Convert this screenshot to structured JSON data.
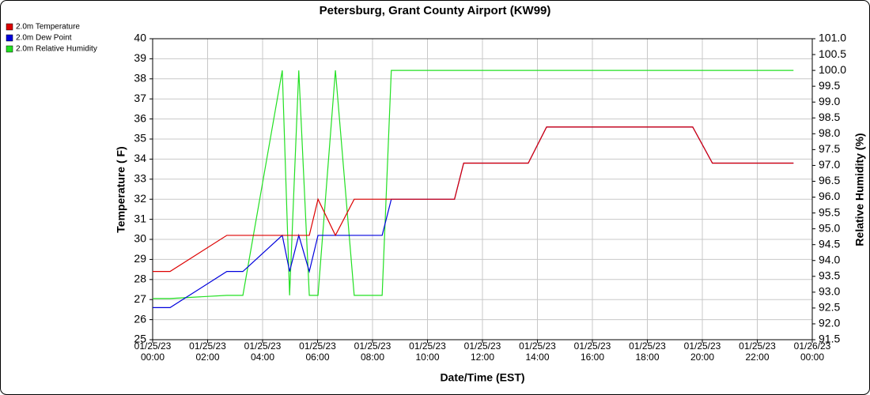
{
  "chart_data": {
    "type": "line",
    "title": "Petersburg, Grant County Airport (KW99)",
    "x_label": "Date/Time (EST)",
    "y_label": "Temperature ( F)",
    "y2_label": "Relative Humidity (%)",
    "x": [
      "01/25/23 00:00",
      "01/25/23 00:38",
      "01/25/23 02:42",
      "01/25/23 03:17",
      "01/25/23 04:43",
      "01/25/23 04:59",
      "01/25/23 05:19",
      "01/25/23 05:42",
      "01/25/23 06:01",
      "01/25/23 06:39",
      "01/25/23 07:20",
      "01/25/23 08:21",
      "01/25/23 08:41",
      "01/25/23 10:59",
      "01/25/23 11:19",
      "01/25/23 13:40",
      "01/25/23 14:20",
      "01/25/23 19:39",
      "01/25/23 20:22",
      "01/25/23 23:19"
    ],
    "series": [
      {
        "name": "2.0m Relative Humidity",
        "color": "#22e022",
        "axis": "y2",
        "values": [
          92.8,
          92.8,
          92.9,
          92.9,
          100,
          92.9,
          100,
          92.9,
          92.9,
          100,
          92.9,
          92.9,
          100,
          100,
          100,
          100,
          100,
          100,
          100,
          100
        ]
      },
      {
        "name": "2.0m Dew Point",
        "color": "#0000dd",
        "values": [
          26.6,
          26.6,
          28.4,
          28.4,
          30.2,
          28.4,
          30.2,
          28.4,
          30.2,
          30.2,
          30.2,
          30.2,
          32.0,
          32.0,
          33.8,
          33.8,
          35.6,
          35.6,
          33.8,
          33.8
        ]
      },
      {
        "name": "2.0m Temperature",
        "color": "#dd0000",
        "values": [
          28.4,
          28.4,
          30.2,
          30.2,
          30.2,
          30.2,
          30.2,
          30.2,
          32.0,
          30.2,
          32.0,
          32.0,
          32.0,
          32.0,
          33.8,
          33.8,
          35.6,
          35.6,
          33.8,
          33.8
        ]
      }
    ],
    "legend_order": [
      2,
      1,
      0
    ],
    "xlim": [
      "01/25/23 00:00",
      "01/26/23 00:00"
    ],
    "xticks": [
      "01/25/23 00:00",
      "01/25/23 02:00",
      "01/25/23 04:00",
      "01/25/23 06:00",
      "01/25/23 08:00",
      "01/25/23 10:00",
      "01/25/23 12:00",
      "01/25/23 14:00",
      "01/25/23 16:00",
      "01/25/23 18:00",
      "01/25/23 20:00",
      "01/25/23 22:00",
      "01/26/23 00:00"
    ],
    "ylim": [
      25,
      40
    ],
    "yticks": [
      25,
      26,
      27,
      28,
      29,
      30,
      31,
      32,
      33,
      34,
      35,
      36,
      37,
      38,
      39,
      40
    ],
    "y2lim": [
      91.5,
      101
    ],
    "y2ticks": [
      91.5,
      {
        "value": 92,
        "label": "92.0"
      },
      92.5,
      {
        "value": 93,
        "label": "93.0"
      },
      93.5,
      {
        "value": 94,
        "label": "94.0"
      },
      94.5,
      {
        "value": 95,
        "label": "95.0"
      },
      95.5,
      {
        "value": 96,
        "label": "96.0"
      },
      96.5,
      {
        "value": 97,
        "label": "97.0"
      },
      97.5,
      {
        "value": 98,
        "label": "98.0"
      },
      98.5,
      {
        "value": 99,
        "label": "99.0"
      },
      99.5,
      {
        "value": 100,
        "label": "100.0"
      },
      100.5,
      {
        "value": 101,
        "label": "101.0"
      }
    ],
    "grid": true
  }
}
